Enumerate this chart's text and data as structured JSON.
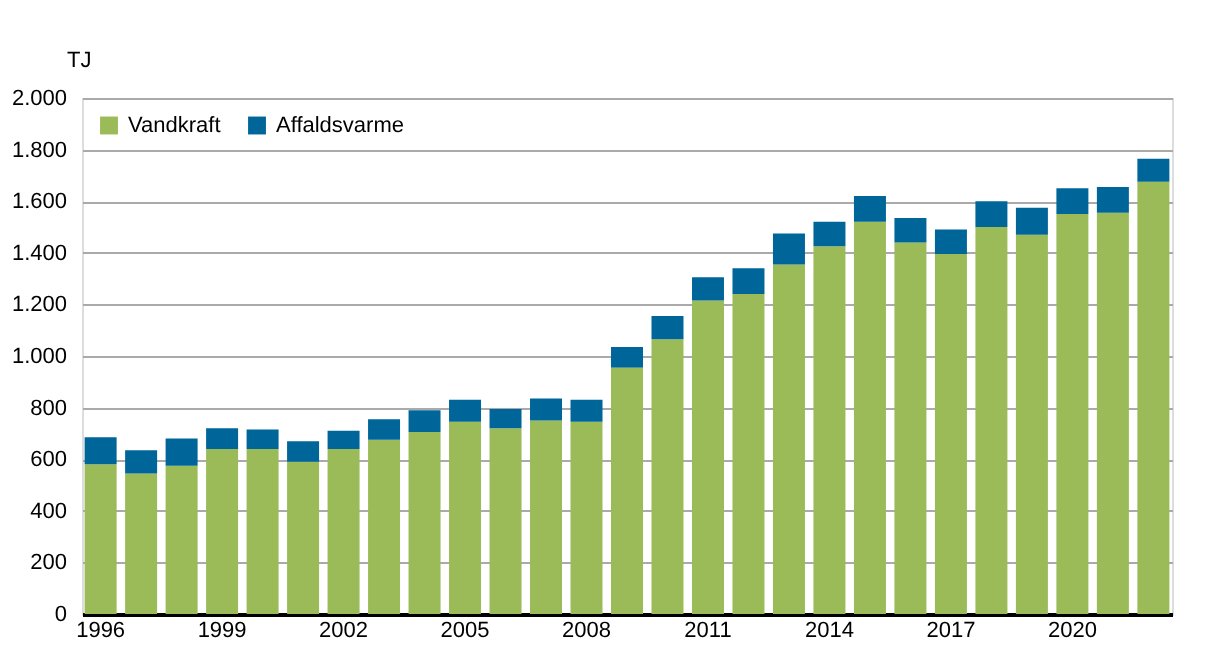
{
  "chart_data": {
    "type": "bar",
    "stacked": true,
    "ylabel": "TJ",
    "categories": [
      "1996",
      null,
      null,
      "1999",
      null,
      null,
      "2002",
      null,
      null,
      "2005",
      null,
      null,
      "2008",
      null,
      null,
      "2011",
      null,
      null,
      "2014",
      null,
      null,
      "2017",
      null,
      null,
      "2020",
      null,
      null
    ],
    "series": [
      {
        "name": "Vandkraft",
        "color": "#9bbb59",
        "values": [
          580,
          545,
          575,
          640,
          640,
          590,
          640,
          675,
          705,
          745,
          720,
          750,
          745,
          955,
          1065,
          1215,
          1240,
          1355,
          1425,
          1520,
          1440,
          1395,
          1500,
          1470,
          1550,
          1555,
          1675
        ]
      },
      {
        "name": "Affaldsvarme",
        "color": "#006699",
        "values": [
          105,
          90,
          105,
          80,
          75,
          80,
          70,
          80,
          85,
          85,
          75,
          85,
          85,
          80,
          90,
          90,
          100,
          120,
          95,
          100,
          95,
          95,
          100,
          105,
          100,
          100,
          90
        ]
      }
    ],
    "ylim": [
      0,
      2000
    ],
    "yticks": [
      0,
      200,
      400,
      600,
      800,
      {
        "value": 1000,
        "label": "1.000"
      },
      {
        "value": 1200,
        "label": "1.200"
      },
      {
        "value": 1400,
        "label": "1.400"
      },
      {
        "value": 1600,
        "label": "1.600"
      },
      {
        "value": 1800,
        "label": "1.800"
      },
      {
        "value": 2000,
        "label": "2.000"
      }
    ],
    "grid": "y",
    "legend": "top left"
  }
}
